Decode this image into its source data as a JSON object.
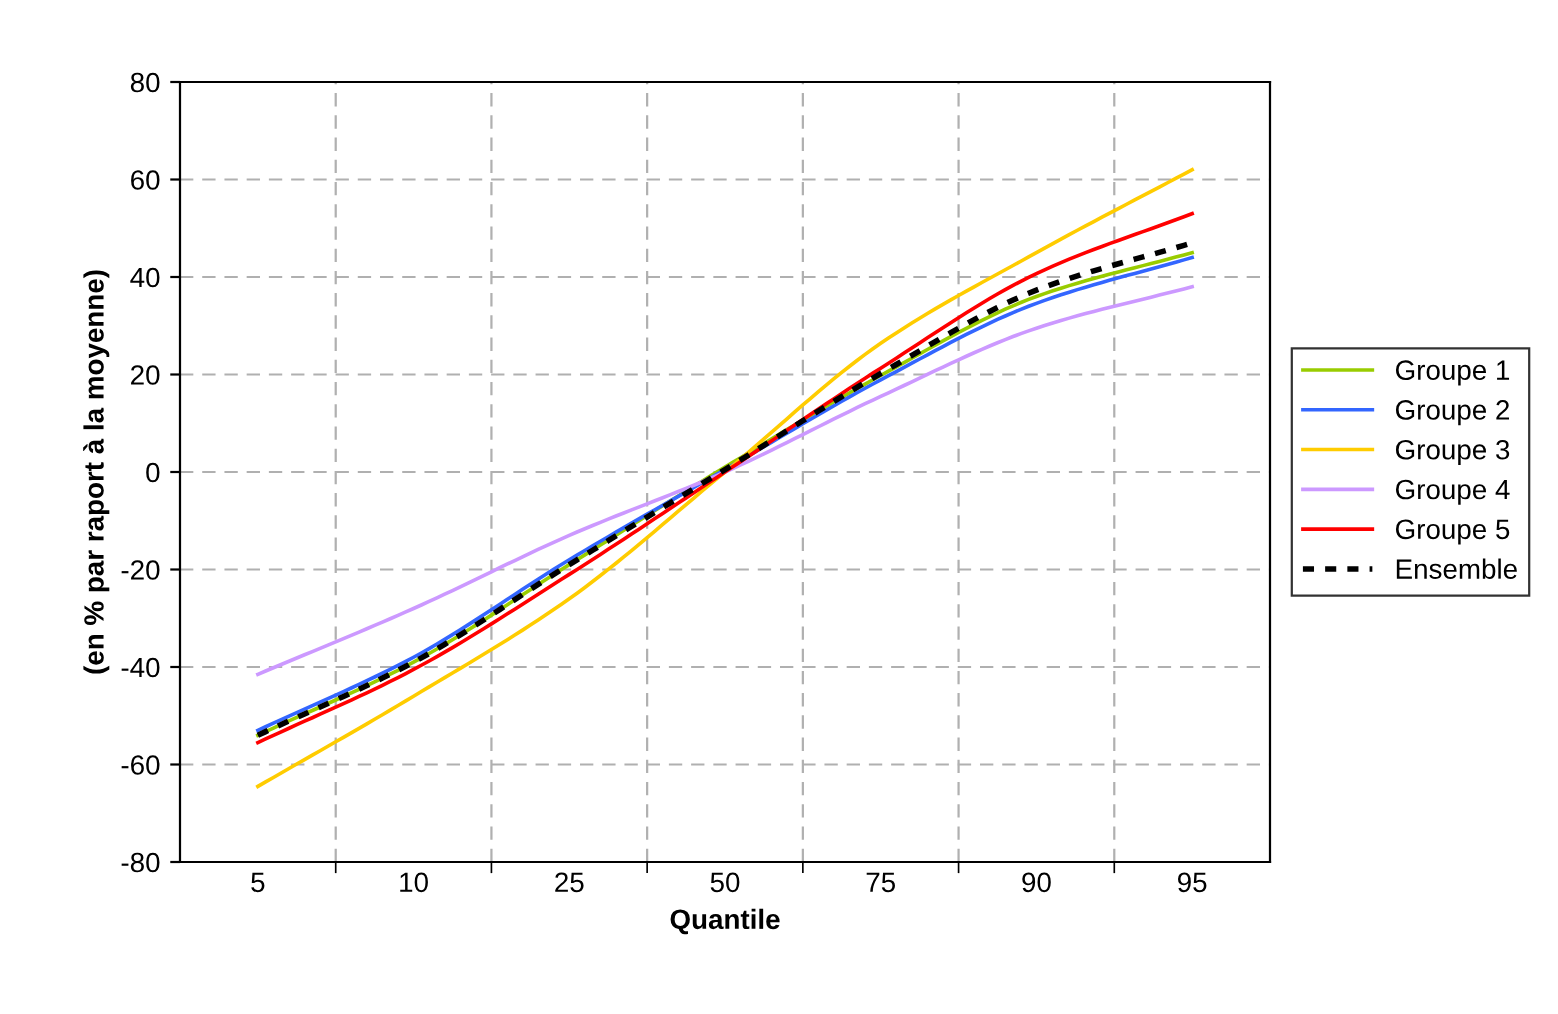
{
  "chart_data": {
    "type": "line",
    "xlabel": "Quantile",
    "ylabel": "(en % par raport à la moyenne)",
    "categories": [
      "5",
      "10",
      "25",
      "50",
      "75",
      "90",
      "95"
    ],
    "series": [
      {
        "name": "Groupe 1",
        "color": "#99cc00",
        "values": [
          -54,
          -39,
          -19,
          1,
          19.8,
          36,
          45
        ]
      },
      {
        "name": "Groupe 2",
        "color": "#3366ff",
        "values": [
          -53,
          -38,
          -18,
          0.5,
          18.9,
          34.6,
          44
        ]
      },
      {
        "name": "Groupe 3",
        "color": "#ffcc00",
        "values": [
          -64.5,
          -46,
          -26,
          0,
          26.4,
          45,
          62
        ]
      },
      {
        "name": "Groupe 4",
        "color": "#cc99ff",
        "values": [
          -41.5,
          -28,
          -13,
          0,
          15.5,
          29.5,
          38
        ]
      },
      {
        "name": "Groupe 5",
        "color": "#ff0000",
        "values": [
          -55.5,
          -40.5,
          -21,
          0,
          21.3,
          40.7,
          53
        ]
      },
      {
        "name": "Ensemble",
        "color": "#000000",
        "line_style": "dotted",
        "values": [
          -54,
          -39,
          -19,
          0.5,
          20.2,
          37.3,
          47
        ]
      }
    ],
    "ylim": [
      -80,
      80
    ],
    "yticks": [
      -80,
      -60,
      -40,
      -20,
      0,
      20,
      40,
      60,
      80
    ],
    "grid": true,
    "legend": "right",
    "marker": "none"
  }
}
